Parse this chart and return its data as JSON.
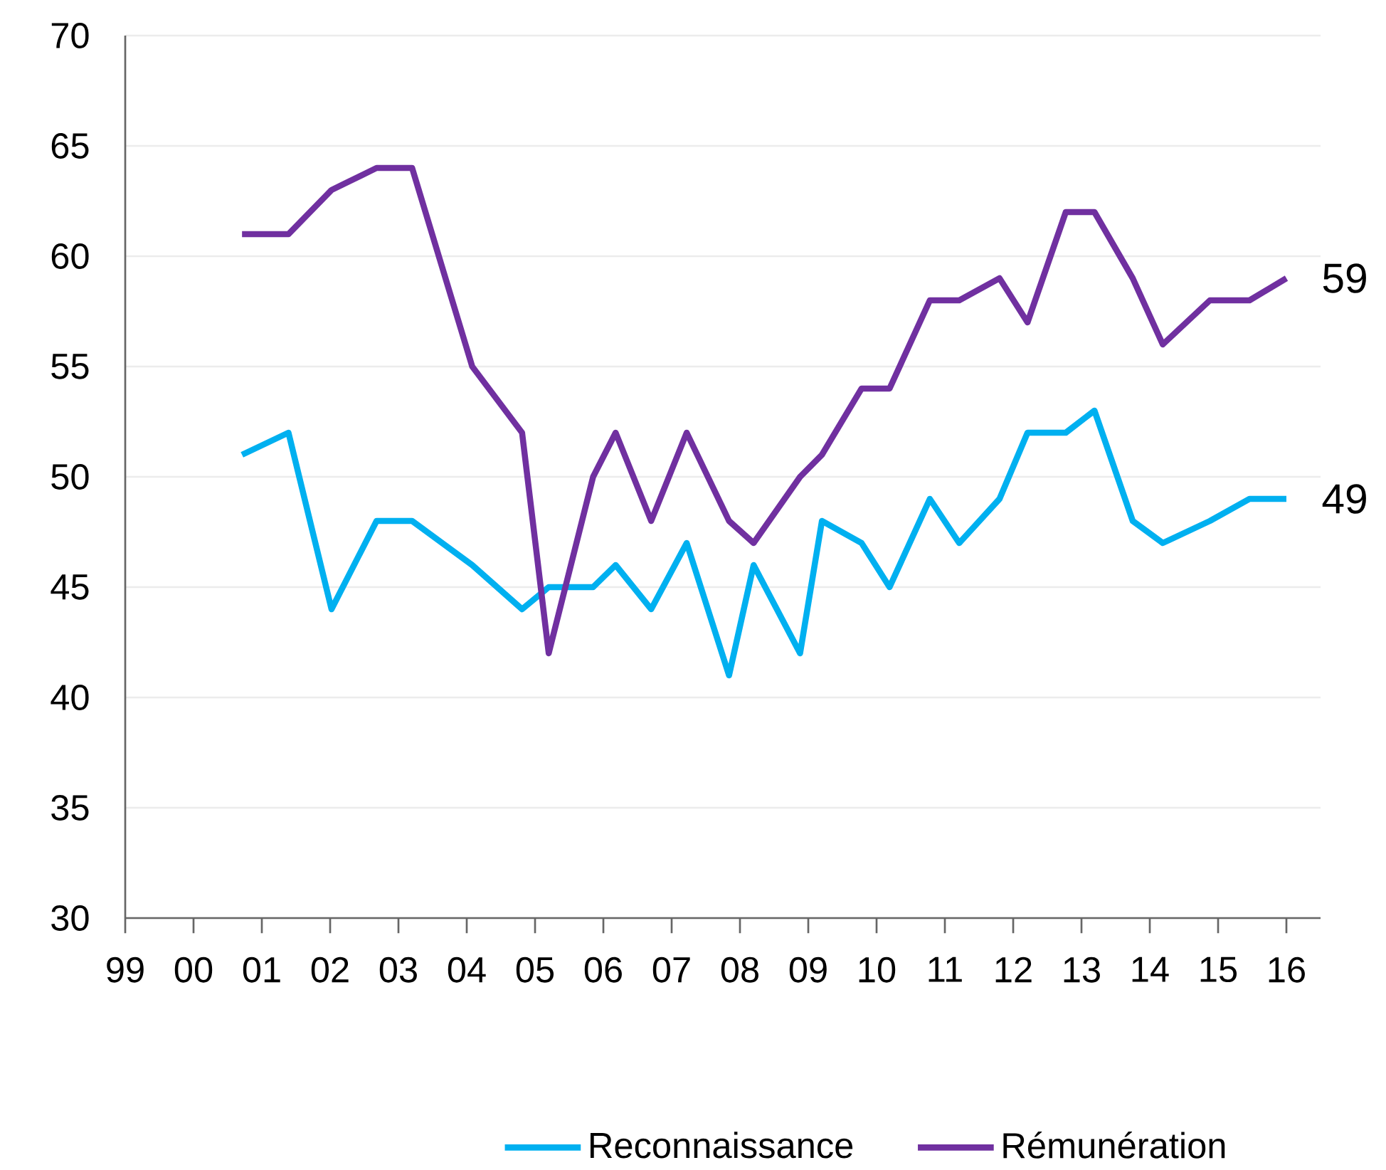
{
  "chart_data": {
    "type": "line",
    "x": [
      2000.71,
      2001.39,
      2002.02,
      2002.68,
      2003.2,
      2004.08,
      2004.81,
      2005.2,
      2005.85,
      2006.18,
      2006.7,
      2007.22,
      2007.84,
      2008.2,
      2008.88,
      2009.2,
      2009.78,
      2010.19,
      2010.78,
      2011.21,
      2011.8,
      2012.21,
      2012.77,
      2013.19,
      2013.75,
      2014.19,
      2014.88,
      2015.46,
      2016.0
    ],
    "series": [
      {
        "name": "Reconnaissance",
        "color": "#00b0f0",
        "values": [
          51,
          52,
          44,
          48,
          48,
          46,
          44,
          45,
          45,
          46,
          44,
          47,
          41,
          46,
          42,
          48,
          47,
          45,
          49,
          47,
          49,
          52,
          52,
          53,
          48,
          47,
          48,
          49,
          49
        ]
      },
      {
        "name": "Rémunération",
        "color": "#7030a0",
        "values": [
          61,
          61,
          63,
          64,
          64,
          55,
          52,
          42,
          50,
          52,
          48,
          52,
          48,
          47,
          50,
          51,
          54,
          54,
          58,
          58,
          59,
          57,
          62,
          62,
          59,
          56,
          58,
          58,
          59
        ]
      }
    ],
    "xlim": [
      1999,
      2016.5
    ],
    "xticks": [
      {
        "value": 1999,
        "label": "99"
      },
      {
        "value": 2000,
        "label": "00"
      },
      {
        "value": 2001,
        "label": "01"
      },
      {
        "value": 2002,
        "label": "02"
      },
      {
        "value": 2003,
        "label": "03"
      },
      {
        "value": 2004,
        "label": "04"
      },
      {
        "value": 2005,
        "label": "05"
      },
      {
        "value": 2006,
        "label": "06"
      },
      {
        "value": 2007,
        "label": "07"
      },
      {
        "value": 2008,
        "label": "08"
      },
      {
        "value": 2009,
        "label": "09"
      },
      {
        "value": 2010,
        "label": "10"
      },
      {
        "value": 2011,
        "label": "11"
      },
      {
        "value": 2012,
        "label": "12"
      },
      {
        "value": 2013,
        "label": "13"
      },
      {
        "value": 2014,
        "label": "14"
      },
      {
        "value": 2015,
        "label": "15"
      },
      {
        "value": 2016,
        "label": "16"
      }
    ],
    "ylim": [
      30,
      70
    ],
    "yticks": [
      30,
      35,
      40,
      45,
      50,
      55,
      60,
      65,
      70
    ],
    "grid": "y",
    "legend": "bottom",
    "annotations": [
      {
        "text": "59",
        "x": 2016.0,
        "y": 59
      },
      {
        "text": "49",
        "x": 2016.0,
        "y": 49
      }
    ]
  }
}
